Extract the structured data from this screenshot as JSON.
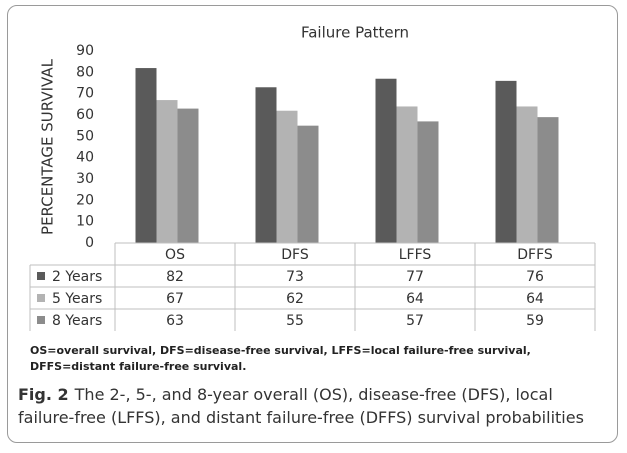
{
  "chart_data": {
    "type": "bar",
    "title": "Failure Pattern",
    "y_label": "PERCENTAGE SURVIVAL",
    "categories": [
      "OS",
      "DFS",
      "LFFS",
      "DFFS"
    ],
    "series": [
      {
        "name": "2 Years",
        "color": "#5a5a5a",
        "values": [
          82,
          73,
          77,
          76
        ]
      },
      {
        "name": "5 Years",
        "color": "#b3b3b3",
        "values": [
          67,
          62,
          64,
          64
        ]
      },
      {
        "name": "8 Years",
        "color": "#8c8c8c",
        "values": [
          63,
          55,
          57,
          59
        ]
      }
    ],
    "ylim": [
      0,
      90
    ],
    "yticks": [
      0,
      10,
      20,
      30,
      40,
      50,
      60,
      70,
      80,
      90
    ],
    "grid": false,
    "footnote": "OS=overall survival, DFS=disease-free survival, LFFS=local failure-free survival, DFFS=distant failure-free survival.",
    "caption_label": "Fig. 2",
    "caption": "The 2-, 5-, and 8-year overall (OS), disease-free (DFS), local failure-free (LFFS), and distant failure-free (DFFS) survival probabilities"
  }
}
